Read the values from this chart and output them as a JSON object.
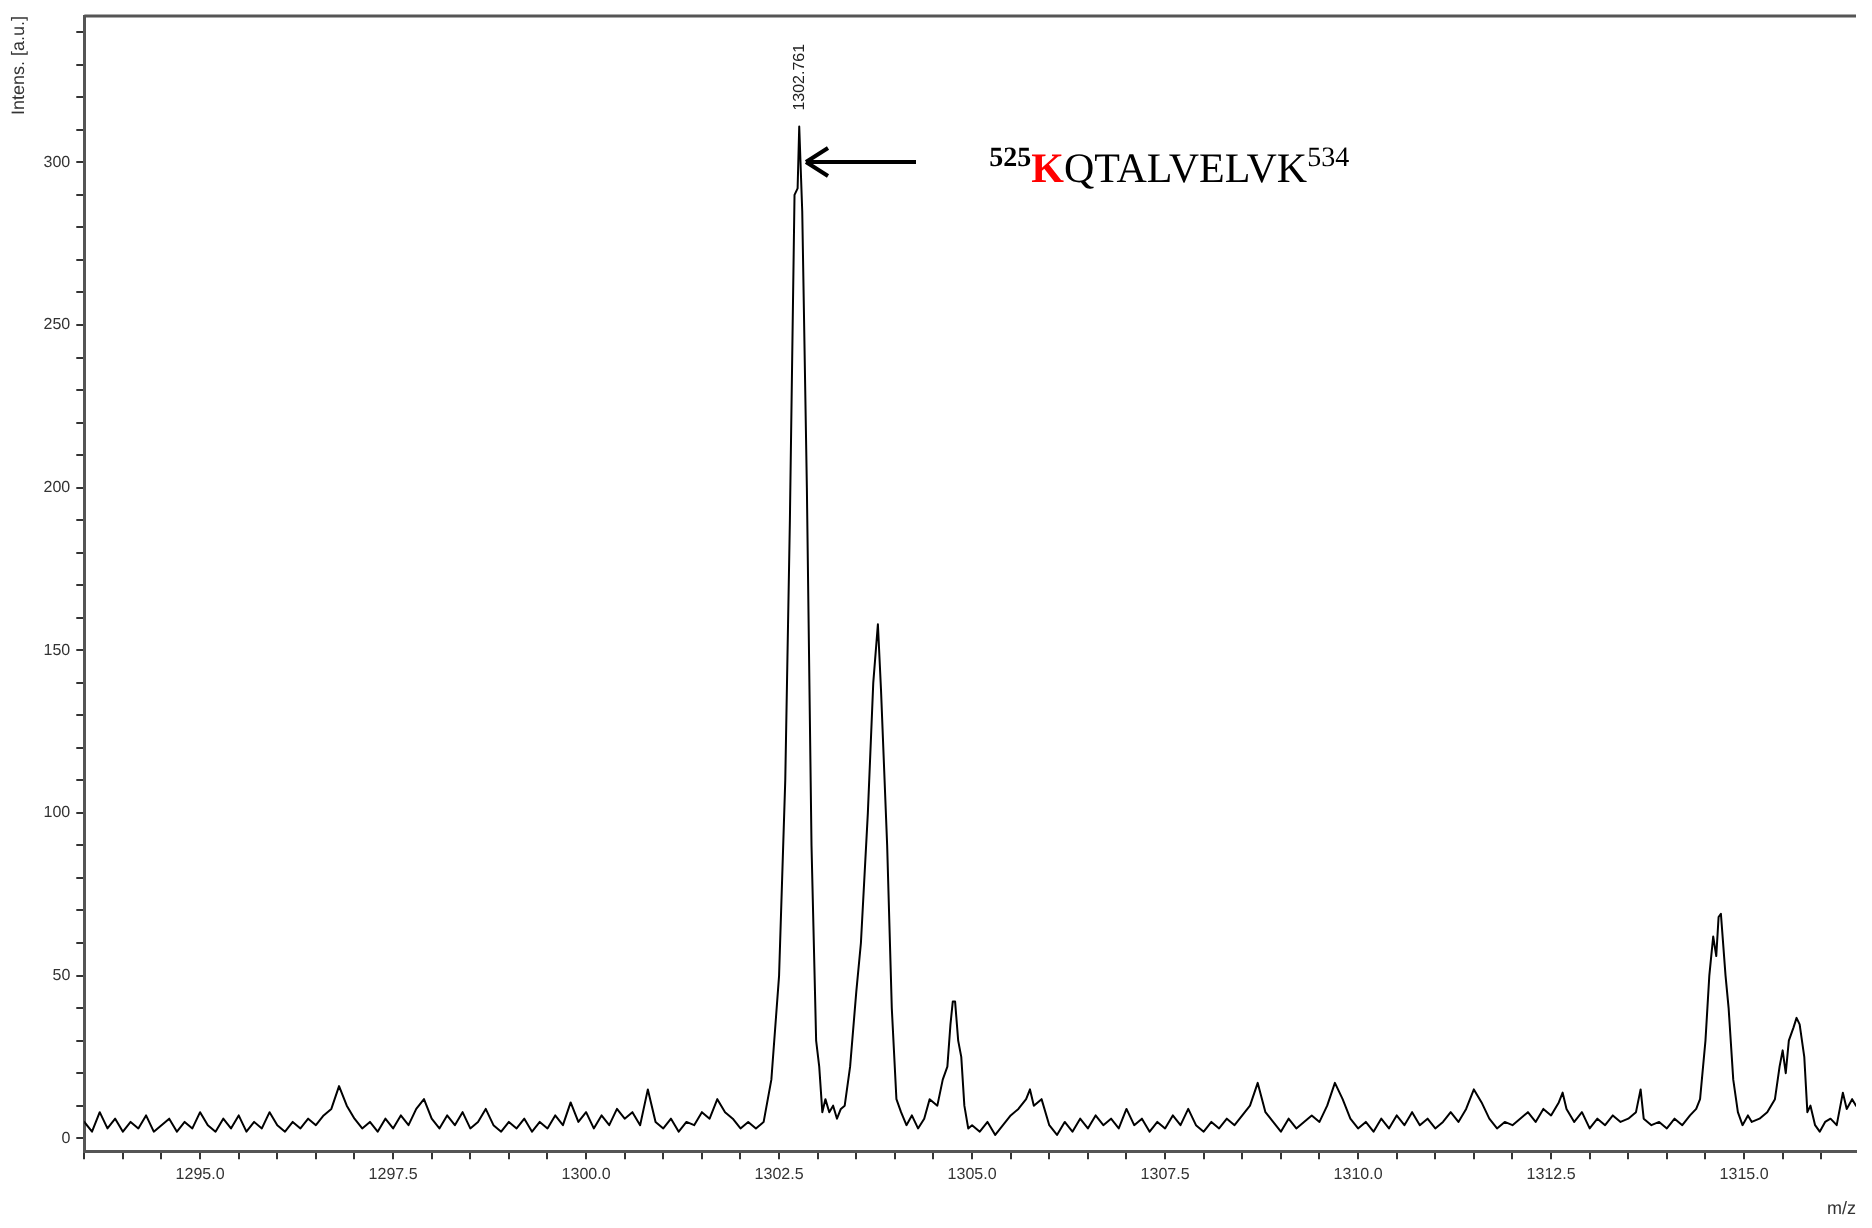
{
  "chart_data": {
    "type": "line",
    "xlabel": "m/z",
    "ylabel": "Intens. [a.u.]",
    "xlim": [
      1293.5,
      1316.45
    ],
    "ylim": [
      -4,
      345
    ],
    "xticks": [
      {
        "value": 1293.5,
        "label": null
      },
      {
        "value": 1294,
        "label": null
      },
      {
        "value": 1294.5,
        "label": null
      },
      {
        "value": 1295,
        "label": "1295.0"
      },
      {
        "value": 1295.5,
        "label": null
      },
      {
        "value": 1296,
        "label": null
      },
      {
        "value": 1296.5,
        "label": null
      },
      {
        "value": 1297,
        "label": null
      },
      {
        "value": 1297.5,
        "label": "1297.5"
      },
      {
        "value": 1298,
        "label": null
      },
      {
        "value": 1298.5,
        "label": null
      },
      {
        "value": 1299,
        "label": null
      },
      {
        "value": 1299.5,
        "label": null
      },
      {
        "value": 1300,
        "label": "1300.0"
      },
      {
        "value": 1300.5,
        "label": null
      },
      {
        "value": 1301,
        "label": null
      },
      {
        "value": 1301.5,
        "label": null
      },
      {
        "value": 1302,
        "label": null
      },
      {
        "value": 1302.5,
        "label": "1302.5"
      },
      {
        "value": 1303,
        "label": null
      },
      {
        "value": 1303.5,
        "label": null
      },
      {
        "value": 1304,
        "label": null
      },
      {
        "value": 1304.5,
        "label": null
      },
      {
        "value": 1305,
        "label": "1305.0"
      },
      {
        "value": 1305.5,
        "label": null
      },
      {
        "value": 1306,
        "label": null
      },
      {
        "value": 1306.5,
        "label": null
      },
      {
        "value": 1307,
        "label": null
      },
      {
        "value": 1307.5,
        "label": "1307.5"
      },
      {
        "value": 1308,
        "label": null
      },
      {
        "value": 1308.5,
        "label": null
      },
      {
        "value": 1309,
        "label": null
      },
      {
        "value": 1309.5,
        "label": null
      },
      {
        "value": 1310,
        "label": "1310.0"
      },
      {
        "value": 1310.5,
        "label": null
      },
      {
        "value": 1311,
        "label": null
      },
      {
        "value": 1311.5,
        "label": null
      },
      {
        "value": 1312,
        "label": null
      },
      {
        "value": 1312.5,
        "label": "1312.5"
      },
      {
        "value": 1313,
        "label": null
      },
      {
        "value": 1313.5,
        "label": null
      },
      {
        "value": 1314,
        "label": null
      },
      {
        "value": 1314.5,
        "label": null
      },
      {
        "value": 1315,
        "label": "1315.0"
      },
      {
        "value": 1315.5,
        "label": null
      },
      {
        "value": 1316,
        "label": null
      }
    ],
    "yticks": [
      0,
      {
        "value": 10,
        "label": null
      },
      {
        "value": 20,
        "label": null
      },
      {
        "value": 30,
        "label": null
      },
      {
        "value": 40,
        "label": null
      },
      50,
      {
        "value": 60,
        "label": null
      },
      {
        "value": 70,
        "label": null
      },
      {
        "value": 80,
        "label": null
      },
      {
        "value": 90,
        "label": null
      },
      100,
      {
        "value": 110,
        "label": null
      },
      {
        "value": 120,
        "label": null
      },
      {
        "value": 130,
        "label": null
      },
      {
        "value": 140,
        "label": null
      },
      150,
      {
        "value": 160,
        "label": null
      },
      {
        "value": 170,
        "label": null
      },
      {
        "value": 180,
        "label": null
      },
      {
        "value": 190,
        "label": null
      },
      200,
      {
        "value": 210,
        "label": null
      },
      {
        "value": 220,
        "label": null
      },
      {
        "value": 230,
        "label": null
      },
      {
        "value": 240,
        "label": null
      },
      250,
      {
        "value": 260,
        "label": null
      },
      {
        "value": 270,
        "label": null
      },
      {
        "value": 280,
        "label": null
      },
      {
        "value": 290,
        "label": null
      },
      300,
      {
        "value": 310,
        "label": null
      },
      {
        "value": 320,
        "label": null
      },
      {
        "value": 330,
        "label": null
      },
      {
        "value": 340,
        "label": null
      }
    ],
    "annotations": [
      {
        "text": "1302.761",
        "x": 1302.761,
        "y": 311
      },
      "$^{525}$KQTALVELVK$^{534}$"
    ],
    "series": [
      {
        "color": "#000000",
        "x": [
          1293.5,
          1293.6,
          1293.7,
          1293.8,
          1293.9,
          1294.0,
          1294.1,
          1294.2,
          1294.3,
          1294.4,
          1294.5,
          1294.6,
          1294.7,
          1294.8,
          1294.9,
          1295.0,
          1295.1,
          1295.2,
          1295.3,
          1295.4,
          1295.5,
          1295.6,
          1295.7,
          1295.8,
          1295.9,
          1296.0,
          1296.1,
          1296.2,
          1296.3,
          1296.4,
          1296.5,
          1296.6,
          1296.7,
          1296.8,
          1296.9,
          1297.0,
          1297.1,
          1297.2,
          1297.3,
          1297.4,
          1297.5,
          1297.6,
          1297.7,
          1297.8,
          1297.9,
          1298.0,
          1298.1,
          1298.2,
          1298.3,
          1298.4,
          1298.5,
          1298.6,
          1298.7,
          1298.8,
          1298.9,
          1299.0,
          1299.1,
          1299.2,
          1299.3,
          1299.4,
          1299.5,
          1299.6,
          1299.7,
          1299.8,
          1299.9,
          1300.0,
          1300.1,
          1300.2,
          1300.3,
          1300.4,
          1300.5,
          1300.6,
          1300.7,
          1300.8,
          1300.9,
          1301.0,
          1301.1,
          1301.2,
          1301.3,
          1301.4,
          1301.5,
          1301.6,
          1301.7,
          1301.8,
          1301.9,
          1302.0,
          1302.1,
          1302.2,
          1302.3,
          1302.4,
          1302.5,
          1302.58,
          1302.64,
          1302.7,
          1302.74,
          1302.761,
          1302.8,
          1302.86,
          1302.92,
          1302.98,
          1303.02,
          1303.06,
          1303.1,
          1303.15,
          1303.2,
          1303.25,
          1303.3,
          1303.35,
          1303.42,
          1303.5,
          1303.56,
          1303.65,
          1303.72,
          1303.78,
          1303.82,
          1303.9,
          1303.96,
          1304.02,
          1304.08,
          1304.15,
          1304.22,
          1304.3,
          1304.38,
          1304.45,
          1304.55,
          1304.62,
          1304.68,
          1304.72,
          1304.75,
          1304.78,
          1304.82,
          1304.86,
          1304.9,
          1304.95,
          1305.0,
          1305.1,
          1305.2,
          1305.3,
          1305.4,
          1305.5,
          1305.6,
          1305.7,
          1305.75,
          1305.8,
          1305.9,
          1306.0,
          1306.1,
          1306.2,
          1306.3,
          1306.4,
          1306.5,
          1306.6,
          1306.7,
          1306.8,
          1306.9,
          1307.0,
          1307.1,
          1307.2,
          1307.3,
          1307.4,
          1307.5,
          1307.6,
          1307.7,
          1307.8,
          1307.9,
          1308.0,
          1308.1,
          1308.2,
          1308.3,
          1308.4,
          1308.5,
          1308.6,
          1308.7,
          1308.8,
          1308.9,
          1309.0,
          1309.1,
          1309.2,
          1309.3,
          1309.4,
          1309.5,
          1309.6,
          1309.7,
          1309.8,
          1309.9,
          1310.0,
          1310.1,
          1310.2,
          1310.3,
          1310.4,
          1310.5,
          1310.6,
          1310.7,
          1310.8,
          1310.9,
          1311.0,
          1311.1,
          1311.2,
          1311.3,
          1311.4,
          1311.5,
          1311.6,
          1311.7,
          1311.8,
          1311.9,
          1312.0,
          1312.1,
          1312.2,
          1312.3,
          1312.4,
          1312.5,
          1312.6,
          1312.65,
          1312.7,
          1312.8,
          1312.9,
          1313.0,
          1313.1,
          1313.2,
          1313.3,
          1313.4,
          1313.5,
          1313.6,
          1313.66,
          1313.7,
          1313.8,
          1313.9,
          1314.0,
          1314.1,
          1314.2,
          1314.3,
          1314.38,
          1314.43,
          1314.5,
          1314.55,
          1314.6,
          1314.64,
          1314.67,
          1314.7,
          1314.76,
          1314.8,
          1314.86,
          1314.92,
          1314.98,
          1315.05,
          1315.1,
          1315.2,
          1315.3,
          1315.4,
          1315.46,
          1315.5,
          1315.54,
          1315.58,
          1315.64,
          1315.68,
          1315.72,
          1315.78,
          1315.82,
          1315.86,
          1315.92,
          1315.98,
          1316.05,
          1316.12,
          1316.2,
          1316.28,
          1316.33,
          1316.4,
          1316.45
        ],
        "values": [
          5,
          2,
          8,
          3,
          6,
          2,
          5,
          3,
          7,
          2,
          4,
          6,
          2,
          5,
          3,
          8,
          4,
          2,
          6,
          3,
          7,
          2,
          5,
          3,
          8,
          4,
          2,
          5,
          3,
          6,
          4,
          7,
          9,
          16,
          10,
          6,
          3,
          5,
          2,
          6,
          3,
          7,
          4,
          9,
          12,
          6,
          3,
          7,
          4,
          8,
          3,
          5,
          9,
          4,
          2,
          5,
          3,
          6,
          2,
          5,
          3,
          7,
          4,
          11,
          5,
          8,
          3,
          7,
          4,
          9,
          6,
          8,
          4,
          15,
          5,
          3,
          6,
          2,
          5,
          4,
          8,
          6,
          12,
          8,
          6,
          3,
          5,
          3,
          5,
          18,
          50,
          110,
          190,
          290,
          292,
          311,
          285,
          200,
          90,
          30,
          22,
          8,
          12,
          8,
          10,
          6,
          9,
          10,
          22,
          45,
          60,
          100,
          140,
          158,
          138,
          90,
          40,
          12,
          8,
          4,
          7,
          3,
          6,
          12,
          10,
          18,
          22,
          35,
          42,
          42,
          30,
          25,
          10,
          3,
          4,
          2,
          5,
          1,
          4,
          7,
          9,
          12,
          15,
          10,
          12,
          4,
          1,
          5,
          2,
          6,
          3,
          7,
          4,
          6,
          3,
          9,
          4,
          6,
          2,
          5,
          3,
          7,
          4,
          9,
          4,
          2,
          5,
          3,
          6,
          4,
          7,
          10,
          17,
          8,
          5,
          2,
          6,
          3,
          5,
          7,
          5,
          10,
          17,
          12,
          6,
          3,
          5,
          2,
          6,
          3,
          7,
          4,
          8,
          4,
          6,
          3,
          5,
          8,
          5,
          9,
          15,
          11,
          6,
          3,
          5,
          4,
          6,
          8,
          5,
          9,
          7,
          11,
          14,
          9,
          5,
          8,
          3,
          6,
          4,
          7,
          5,
          6,
          8,
          15,
          6,
          4,
          5,
          3,
          6,
          4,
          7,
          9,
          12,
          30,
          50,
          62,
          56,
          68,
          69,
          50,
          40,
          18,
          8,
          4,
          7,
          5,
          6,
          8,
          12,
          22,
          27,
          20,
          30,
          34,
          37,
          35,
          25,
          8,
          10,
          4,
          2,
          5,
          6,
          4,
          14,
          9,
          12,
          10
        ]
      }
    ]
  }
}
